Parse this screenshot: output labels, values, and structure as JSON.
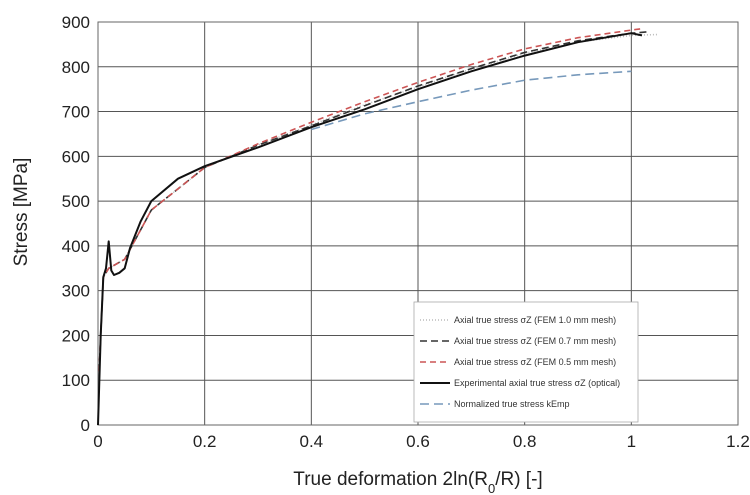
{
  "chart_data": {
    "type": "line",
    "xlabel": "True deformation 2ln(R0/R) [-]",
    "ylabel": "Stress [MPa]",
    "xlim": [
      0,
      1.2
    ],
    "ylim": [
      0,
      900
    ],
    "xticks": [
      "0",
      "0.2",
      "0.4",
      "0.6",
      "0.8",
      "1",
      "1.2"
    ],
    "yticks": [
      "0",
      "100",
      "200",
      "300",
      "400",
      "500",
      "600",
      "700",
      "800",
      "900"
    ],
    "grid": true,
    "legend_position": "bottom-right",
    "series": [
      {
        "name": "Axial true stress σZ (FEM 1.0 mm mesh)",
        "color": "#bbbbbb",
        "dash": "1,2",
        "x": [
          0.002,
          0.01,
          0.02,
          0.05,
          0.1,
          0.2,
          0.3,
          0.4,
          0.5,
          0.6,
          0.7,
          0.8,
          0.9,
          1.0,
          1.05
        ],
        "y": [
          120,
          330,
          350,
          370,
          480,
          575,
          625,
          670,
          715,
          755,
          795,
          830,
          855,
          870,
          872
        ]
      },
      {
        "name": "Axial true stress σZ (FEM 0.7 mm mesh)",
        "color": "#333333",
        "dash": "7,4",
        "x": [
          0.002,
          0.01,
          0.02,
          0.05,
          0.1,
          0.2,
          0.3,
          0.4,
          0.5,
          0.6,
          0.7,
          0.8,
          0.9,
          1.0,
          1.03
        ],
        "y": [
          120,
          330,
          350,
          370,
          480,
          575,
          625,
          668,
          713,
          757,
          796,
          832,
          858,
          875,
          878
        ]
      },
      {
        "name": "Axial true stress σZ (FEM 0.5 mm mesh)",
        "color": "#cc5555",
        "dash": "6,4",
        "x": [
          0.002,
          0.01,
          0.02,
          0.05,
          0.1,
          0.2,
          0.3,
          0.4,
          0.5,
          0.6,
          0.7,
          0.8,
          0.9,
          1.0,
          1.02
        ],
        "y": [
          120,
          330,
          350,
          370,
          480,
          575,
          628,
          676,
          722,
          765,
          805,
          840,
          865,
          882,
          885
        ]
      },
      {
        "name": "Experimental axial true stress σZ (optical)",
        "color": "#111111",
        "dash": "",
        "x": [
          0,
          0.005,
          0.01,
          0.015,
          0.02,
          0.025,
          0.03,
          0.04,
          0.05,
          0.06,
          0.08,
          0.1,
          0.15,
          0.2,
          0.3,
          0.4,
          0.5,
          0.6,
          0.7,
          0.8,
          0.9,
          1.0,
          1.02
        ],
        "y": [
          0,
          200,
          330,
          350,
          410,
          345,
          335,
          340,
          350,
          395,
          455,
          500,
          550,
          578,
          620,
          665,
          705,
          750,
          790,
          825,
          855,
          875,
          870
        ]
      },
      {
        "name": "Normalized true stress kEmp",
        "color": "#7799bb",
        "dash": "9,5",
        "x": [
          0.4,
          0.5,
          0.6,
          0.7,
          0.8,
          0.9,
          1.0
        ],
        "y": [
          660,
          695,
          722,
          748,
          770,
          782,
          790
        ]
      }
    ]
  }
}
